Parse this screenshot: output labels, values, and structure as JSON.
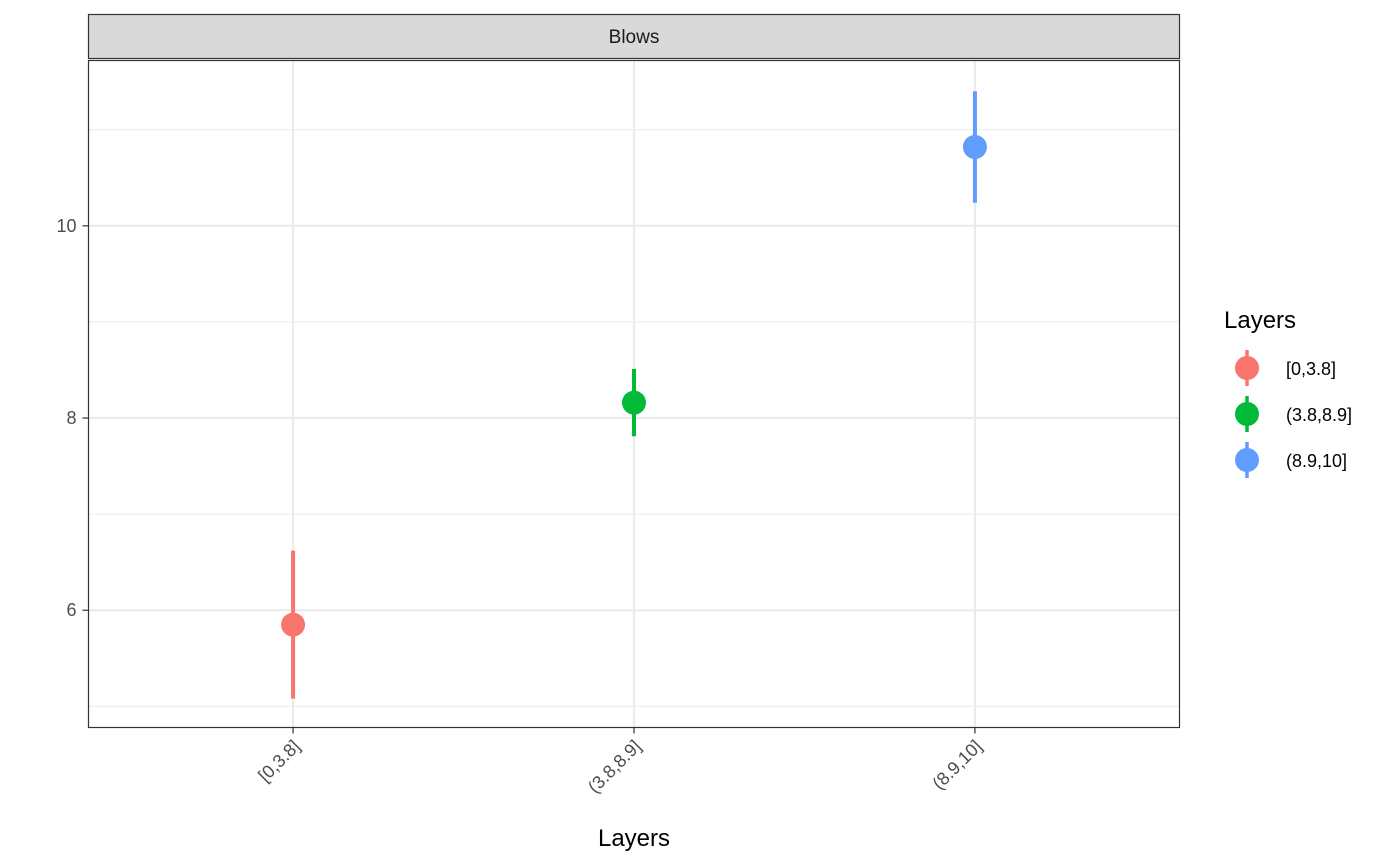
{
  "chart_data": {
    "type": "pointrange",
    "facet_label": "Blows",
    "xlabel": "Layers",
    "ylabel": "",
    "categories": [
      "[0,3.8]",
      "(3.8,8.9]",
      "(8.9,10]"
    ],
    "series": [
      {
        "name": "[0,3.8]",
        "category": "[0,3.8]",
        "y": 5.85,
        "ymin": 5.08,
        "ymax": 6.62,
        "color": "#F8766D"
      },
      {
        "name": "(3.8,8.9]",
        "category": "(3.8,8.9]",
        "y": 8.16,
        "ymin": 7.81,
        "ymax": 8.51,
        "color": "#00BA38"
      },
      {
        "name": "(8.9,10]",
        "category": "(8.9,10]",
        "y": 10.82,
        "ymin": 10.24,
        "ymax": 11.4,
        "color": "#619CFF"
      }
    ],
    "ylim": [
      4.78,
      11.72
    ],
    "yticks": [
      6,
      8,
      10
    ],
    "yticks_minor": [
      5,
      7,
      9,
      11
    ],
    "ytick_labels": [
      "6",
      "8",
      "10"
    ],
    "grid": true,
    "legend": {
      "title": "Layers",
      "position": "right",
      "entries": [
        "[0,3.8]",
        "(3.8,8.9]",
        "(8.9,10]"
      ]
    }
  }
}
